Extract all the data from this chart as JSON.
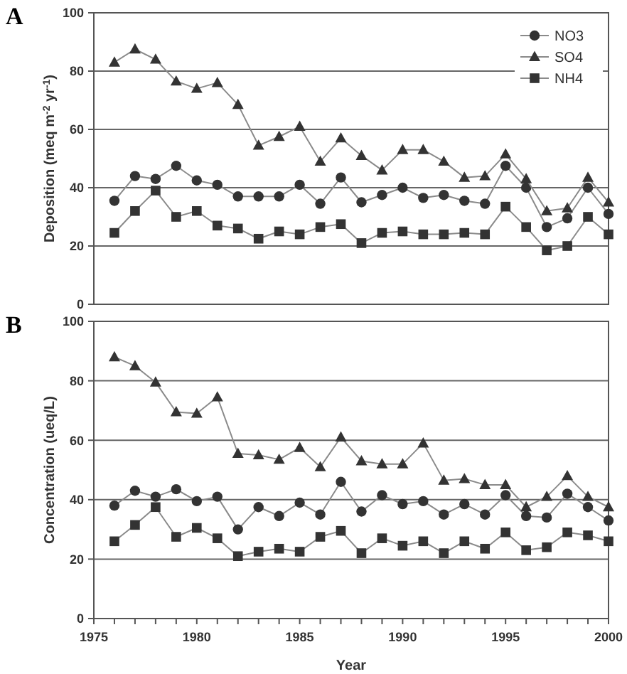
{
  "chart_data": [
    {
      "type": "line",
      "title": "A",
      "ylabel": "Deposition (meq m$^{-2}$ yr$^{-1}$)",
      "x": [
        1976,
        1977,
        1978,
        1979,
        1980,
        1981,
        1982,
        1983,
        1984,
        1985,
        1986,
        1987,
        1988,
        1989,
        1990,
        1991,
        1992,
        1993,
        1994,
        1995,
        1996,
        1997,
        1998,
        1999,
        2000
      ],
      "series": [
        {
          "name": "NO3",
          "color": "#333333",
          "marker": "circle",
          "values": [
            35.5,
            44,
            43,
            47.5,
            42.5,
            41,
            37,
            37,
            37,
            41,
            34.5,
            43.5,
            35,
            37.5,
            40,
            36.5,
            37.5,
            35.5,
            34.5,
            47.5,
            40,
            26.5,
            29.5,
            40,
            31
          ]
        },
        {
          "name": "SO4",
          "color": "#333333",
          "marker": "triangle",
          "values": [
            83,
            87.5,
            84,
            76.5,
            74,
            76,
            68.5,
            54.5,
            57.5,
            61,
            49,
            57,
            51,
            46,
            53,
            53,
            49,
            43.5,
            44,
            51.5,
            43,
            32,
            33,
            43.5,
            35
          ]
        },
        {
          "name": "NH4",
          "color": "#333333",
          "marker": "square",
          "values": [
            24.5,
            32,
            39,
            30,
            32,
            27,
            26,
            22.5,
            25,
            24,
            26.5,
            27.5,
            21,
            24.5,
            25,
            24,
            24,
            24.5,
            24,
            33.5,
            26.5,
            18.5,
            20,
            30,
            24
          ]
        }
      ],
      "xlim": [
        1975,
        2000
      ],
      "ylim": [
        0,
        100
      ],
      "yticks": [
        0,
        20,
        40,
        60,
        80,
        100
      ],
      "grid": "y",
      "legend": "top right",
      "tick_labels": "y",
      "line_style": "solid"
    },
    {
      "type": "line",
      "title": "B",
      "ylabel": "Concentration (ueq/L)",
      "xlabel": "Year",
      "x": [
        1976,
        1977,
        1978,
        1979,
        1980,
        1981,
        1982,
        1983,
        1984,
        1985,
        1986,
        1987,
        1988,
        1989,
        1990,
        1991,
        1992,
        1993,
        1994,
        1995,
        1996,
        1997,
        1998,
        1999,
        2000
      ],
      "series": [
        {
          "color": "#333333",
          "marker": "circle",
          "values": [
            38,
            43,
            41,
            43.5,
            39.5,
            41,
            30,
            37.5,
            34.5,
            39,
            35,
            46,
            36,
            41.5,
            38.5,
            39.5,
            35,
            38.5,
            35,
            41.5,
            34.5,
            34,
            42,
            37.5,
            33
          ]
        },
        {
          "color": "#333333",
          "marker": "triangle",
          "values": [
            88,
            85,
            79.5,
            69.5,
            69,
            74.5,
            55.5,
            55,
            53.5,
            57.5,
            51,
            61,
            53,
            52,
            52,
            59,
            46.5,
            47,
            45,
            45,
            37.5,
            41,
            48,
            41,
            37.5
          ]
        },
        {
          "color": "#333333",
          "marker": "square",
          "values": [
            26,
            31.5,
            37.5,
            27.5,
            30.5,
            27,
            21,
            22.5,
            23.5,
            22.5,
            27.5,
            29.5,
            22,
            27,
            24.5,
            26,
            22,
            26,
            23.5,
            29,
            23,
            24,
            29,
            28,
            26
          ]
        }
      ],
      "xlim": [
        1975,
        2000
      ],
      "xticks": [
        1975,
        {
          "value": 1976,
          "label": null
        },
        {
          "value": 1977,
          "label": null
        },
        {
          "value": 1978,
          "label": null
        },
        {
          "value": 1979,
          "label": null
        },
        1980,
        {
          "value": 1981,
          "label": null
        },
        {
          "value": 1982,
          "label": null
        },
        {
          "value": 1983,
          "label": null
        },
        {
          "value": 1984,
          "label": null
        },
        1985,
        {
          "value": 1986,
          "label": null
        },
        {
          "value": 1987,
          "label": null
        },
        {
          "value": 1988,
          "label": null
        },
        {
          "value": 1989,
          "label": null
        },
        1990,
        {
          "value": 1991,
          "label": null
        },
        {
          "value": 1992,
          "label": null
        },
        {
          "value": 1993,
          "label": null
        },
        {
          "value": 1994,
          "label": null
        },
        1995,
        {
          "value": 1996,
          "label": null
        },
        {
          "value": 1997,
          "label": null
        },
        {
          "value": 1998,
          "label": null
        },
        {
          "value": 1999,
          "label": null
        },
        2000
      ],
      "ylim": [
        0,
        100
      ],
      "yticks": [
        0,
        20,
        40,
        60,
        80,
        100
      ],
      "grid": "y",
      "line_style": "solid"
    }
  ]
}
